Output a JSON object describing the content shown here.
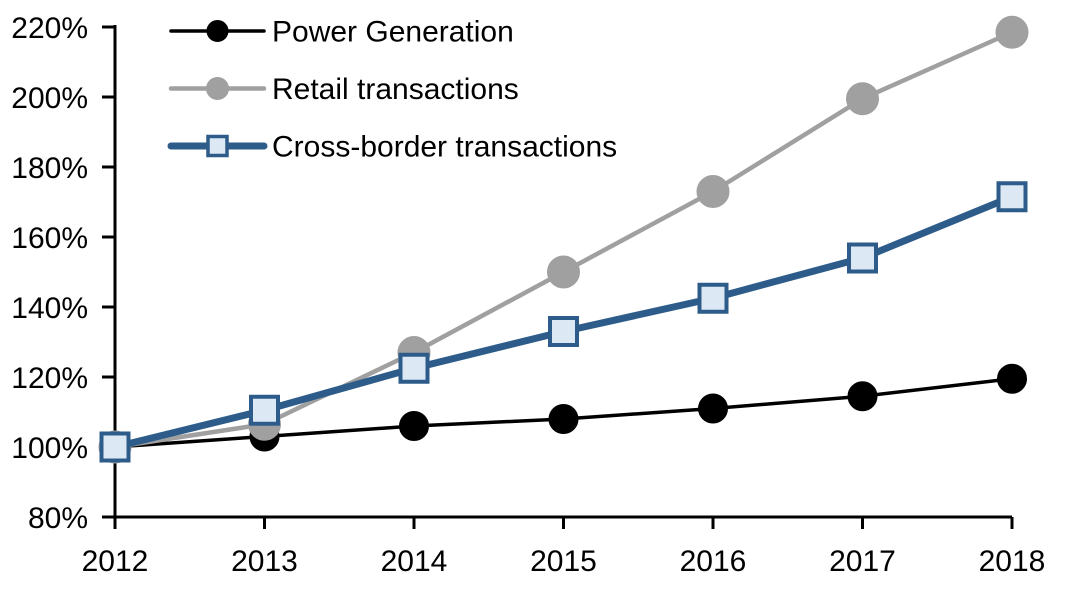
{
  "chart_data": {
    "type": "line",
    "title": "",
    "xlabel": "",
    "ylabel": "",
    "x": [
      2012,
      2013,
      2014,
      2015,
      2016,
      2017,
      2018
    ],
    "x_tick_labels": [
      "2012",
      "2013",
      "2014",
      "2015",
      "2016",
      "2017",
      "2018"
    ],
    "y_axis": {
      "min": 80,
      "max": 220,
      "step": 20,
      "tick_suffix": "%",
      "tick_labels": [
        "80%",
        "100%",
        "120%",
        "140%",
        "160%",
        "180%",
        "200%",
        "220%"
      ]
    },
    "grid": false,
    "legend_position": "top-left-inside",
    "axis_color": "#000000",
    "series": [
      {
        "name": "Power Generation",
        "slug": "power-generation",
        "marker": "circle",
        "line_color": "#000000",
        "marker_fill": "#000000",
        "marker_stroke": "#000000",
        "values": [
          100,
          103,
          106,
          108,
          111,
          114.5,
          119.5
        ]
      },
      {
        "name": "Retail transactions",
        "slug": "retail-transactions",
        "marker": "circle",
        "line_color": "#A0A0A0",
        "marker_fill": "#A0A0A0",
        "marker_stroke": "#A0A0A0",
        "values": [
          100,
          106.5,
          127,
          150,
          173,
          199.5,
          218.5
        ]
      },
      {
        "name": "Cross-border transactions",
        "slug": "cross-border-transactions",
        "marker": "square",
        "line_color": "#2E5C8A",
        "marker_fill": "#DCE8F4",
        "marker_stroke": "#2E5C8A",
        "values": [
          100,
          110.5,
          122.5,
          133,
          142.5,
          154,
          171.5
        ]
      }
    ]
  }
}
